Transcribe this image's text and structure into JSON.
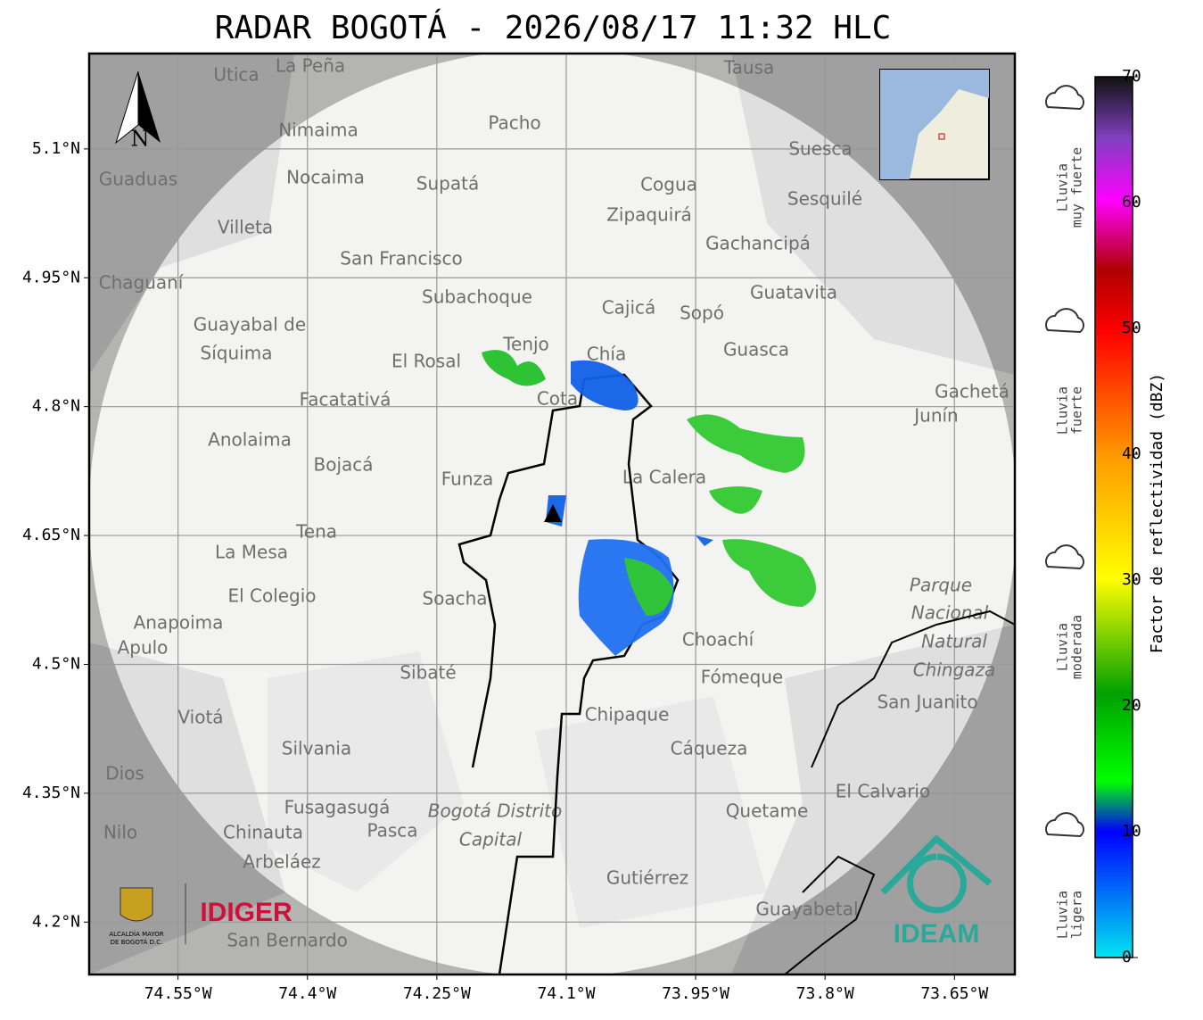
{
  "header": {
    "title": "RADAR BOGOTÁ - 2026/08/17 11:32 HLC"
  },
  "map": {
    "xlim": [
      -74.653,
      -73.58
    ],
    "ylim": [
      4.139,
      5.211
    ],
    "xticks": [
      {
        "value": -74.55,
        "label": "74.55°W"
      },
      {
        "value": -74.4,
        "label": "74.4°W"
      },
      {
        "value": -74.25,
        "label": "74.25°W"
      },
      {
        "value": -74.1,
        "label": "74.1°W"
      },
      {
        "value": -73.95,
        "label": "73.95°W"
      },
      {
        "value": -73.8,
        "label": "73.8°W"
      },
      {
        "value": -73.65,
        "label": "73.65°W"
      }
    ],
    "yticks": [
      {
        "value": 5.1,
        "label": "5.1°N"
      },
      {
        "value": 4.95,
        "label": "4.95°N"
      },
      {
        "value": 4.8,
        "label": "4.8°N"
      },
      {
        "value": 4.65,
        "label": "4.65°N"
      },
      {
        "value": 4.5,
        "label": "4.5°N"
      },
      {
        "value": 4.35,
        "label": "4.35°N"
      },
      {
        "value": 4.2,
        "label": "4.2°N"
      }
    ],
    "north": "N",
    "places": [
      "La Peña",
      "Utica",
      "Tausa",
      "Pacho",
      "Nimaima",
      "Nocaima",
      "Supatá",
      "Guaduas",
      "Suesca",
      "Cogua",
      "Sesquilé",
      "Zipaquirá",
      "Villeta",
      "Gachancipá",
      "San Francisco",
      "Chaguaní",
      "Guatavita",
      "Subachoque",
      "Cajicá",
      "Sopó",
      "Guayabal de",
      "Síquima",
      "Tenjo",
      "El Rosal",
      "Chía",
      "Guasca",
      "Gachetá",
      "Junín",
      "Facatativá",
      "Cota",
      "Anolaima",
      "Bojacá",
      "Funza",
      "La Calera",
      "Tena",
      "La Mesa",
      "El Colegio",
      "Soacha",
      "Parque",
      "Nacional",
      "Natural",
      "Chingaza",
      "Anapoima",
      "Apulo",
      "Choachí",
      "Sibaté",
      "Fómeque",
      "San Juanito",
      "Chipaque",
      "Viotá",
      "Silvania",
      "Cáqueza",
      "Dios",
      "El Calvario",
      "Fusagasugá",
      "Bogotá Distrito",
      "Capital",
      "Quetame",
      "Nilo",
      "Chinauta",
      "Pasca",
      "Arbeláez",
      "Gutiérrez",
      "Guayabetal",
      "San Bernardo"
    ]
  },
  "logos": {
    "alcaldia": [
      "ALCALDÍA MAYOR",
      "DE BOGOTÁ D.C."
    ],
    "idiger": "IDIGER",
    "ideam": "IDEAM"
  },
  "colorbar": {
    "label": "Factor de reflectividad (dBZ)",
    "lim": [
      0,
      70
    ],
    "ticks": [
      0,
      10,
      20,
      30,
      40,
      50,
      60,
      70
    ],
    "categories": [
      [
        "Lluvia",
        "muy fuerte"
      ],
      [
        "Lluvia",
        "fuerte"
      ],
      [
        "Lluvia",
        "moderada"
      ],
      [
        "Lluvia",
        "ligera"
      ]
    ]
  }
}
